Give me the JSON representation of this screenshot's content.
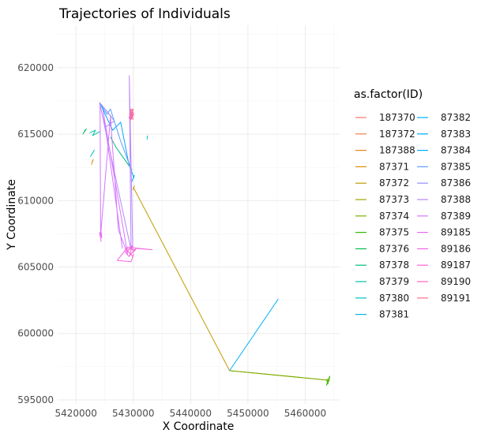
{
  "chart_data": {
    "type": "line",
    "title": "Trajectories of Individuals",
    "xlabel": "X Coordinate",
    "ylabel": "Y Coordinate",
    "xlim": [
      5416800,
      5466000
    ],
    "ylim": [
      594700,
      623200
    ],
    "x_ticks": [
      5420000,
      5430000,
      5440000,
      5450000,
      5460000
    ],
    "y_ticks": [
      595000,
      600000,
      605000,
      610000,
      615000,
      620000
    ],
    "x_tick_labels": [
      "5420000",
      "5430000",
      "5440000",
      "5450000",
      "5460000"
    ],
    "y_tick_labels": [
      "595000",
      "600000",
      "605000",
      "610000",
      "615000",
      "620000"
    ],
    "grid": true,
    "legend": {
      "title": "as.factor(ID)",
      "placement": "right",
      "columns": 2
    },
    "series": [
      {
        "name": "187370",
        "color": "#F8766D",
        "x": [
          5429400,
          5429700,
          5429300,
          5429900,
          5429500
        ],
        "y": [
          616400,
          616800,
          616200,
          616500,
          616700
        ]
      },
      {
        "name": "187372",
        "color": "#F07D4B",
        "x": [
          5429600,
          5430000,
          5429400,
          5429800
        ],
        "y": [
          616300,
          616900,
          616600,
          616100
        ]
      },
      {
        "name": "187388",
        "color": "#E68613",
        "x": [
          5422800,
          5423000,
          5422700
        ],
        "y": [
          612900,
          613100,
          612700
        ]
      },
      {
        "name": "87371",
        "color": "#D89000",
        "x": [
          5430000,
          5430200,
          5429900
        ],
        "y": [
          610900,
          611100,
          610800
        ]
      },
      {
        "name": "87372",
        "color": "#C09B00",
        "x": [
          5430000,
          5446800
        ],
        "y": [
          611000,
          597200
        ]
      },
      {
        "name": "87373",
        "color": "#A3A500",
        "x": [
          5446800,
          5463700
        ],
        "y": [
          597200,
          596500
        ]
      },
      {
        "name": "87374",
        "color": "#7CAE00",
        "x": [
          5446800,
          5463700,
          5464000,
          5463800
        ],
        "y": [
          597200,
          596500,
          596200,
          596600
        ]
      },
      {
        "name": "87375",
        "color": "#39B600",
        "x": [
          5463900,
          5464200,
          5463700,
          5464100,
          5464300
        ],
        "y": [
          596300,
          596700,
          596100,
          596400,
          596800
        ]
      },
      {
        "name": "87376",
        "color": "#00BB4E",
        "x": [
          5421400,
          5421800,
          5421200
        ],
        "y": [
          615200,
          615400,
          615000
        ]
      },
      {
        "name": "87378",
        "color": "#00BF7D",
        "x": [
          5426000,
          5427000,
          5429800
        ],
        "y": [
          614800,
          614000,
          612300
        ]
      },
      {
        "name": "87379",
        "color": "#00C1A3",
        "x": [
          5422400,
          5423400,
          5422900,
          5424200
        ],
        "y": [
          615100,
          615300,
          614900,
          615200
        ]
      },
      {
        "name": "87380",
        "color": "#00BFC4",
        "x": [
          5422800,
          5423200,
          5422500
        ],
        "y": [
          613500,
          613800,
          613300
        ]
      },
      {
        "name": "87381",
        "color": "#00BAE0",
        "x": [
          5432400,
          5432500
        ],
        "y": [
          614600,
          614900
        ]
      },
      {
        "name": "87382",
        "color": "#00B0F6",
        "x": [
          5446800,
          5455300
        ],
        "y": [
          597200,
          602600
        ]
      },
      {
        "name": "87383",
        "color": "#00A5FF",
        "x": [
          5429900,
          5430200,
          5429700
        ],
        "y": [
          611600,
          611900,
          611400
        ]
      },
      {
        "name": "87384",
        "color": "#00A9FF",
        "x": [
          5424100,
          5426400,
          5427800,
          5429200,
          5430100
        ],
        "y": [
          617400,
          615300,
          615900,
          612800,
          611700
        ]
      },
      {
        "name": "87385",
        "color": "#619CFF",
        "x": [
          5424200,
          5425400,
          5426000,
          5427700,
          5429500
        ],
        "y": [
          617300,
          616500,
          616900,
          614600,
          612500
        ]
      },
      {
        "name": "87386",
        "color": "#9590FF",
        "x": [
          5426200,
          5424300,
          5426700,
          5425000
        ],
        "y": [
          616300,
          617300,
          616000,
          615500
        ]
      },
      {
        "name": "87388",
        "color": "#B983FF",
        "x": [
          5424100,
          5429600,
          5429300,
          5429900
        ],
        "y": [
          617400,
          606300,
          619400,
          606200
        ]
      },
      {
        "name": "87389",
        "color": "#D376FF",
        "x": [
          5424200,
          5424300,
          5426000,
          5427400,
          5429000,
          5424700,
          5428100
        ],
        "y": [
          617200,
          607400,
          616300,
          607800,
          606000,
          616800,
          606400
        ]
      },
      {
        "name": "89185",
        "color": "#E76BF3",
        "x": [
          5424300,
          5424500,
          5424100,
          5424400
        ],
        "y": [
          608000,
          607200,
          607600,
          606900
        ]
      },
      {
        "name": "89186",
        "color": "#F564E3",
        "x": [
          5428500,
          5429200,
          5430500,
          5433300,
          5429000,
          5427200,
          5429600,
          5430100
        ],
        "y": [
          606200,
          605800,
          606400,
          606300,
          606500,
          605500,
          605400,
          606000
        ]
      },
      {
        "name": "89187",
        "color": "#FC61D5",
        "x": [
          5428800,
          5429800,
          5429400,
          5430400,
          5428600,
          5429900
        ],
        "y": [
          606100,
          606600,
          605900,
          606300,
          606400,
          605800
        ]
      },
      {
        "name": "89190",
        "color": "#FF62BC",
        "x": [
          5429200,
          5429900,
          5429400,
          5430100,
          5429700
        ],
        "y": [
          616200,
          616700,
          616000,
          616500,
          616900
        ]
      },
      {
        "name": "89191",
        "color": "#FF6C91",
        "x": [
          5429300,
          5429800,
          5429500,
          5430000
        ],
        "y": [
          616500,
          616300,
          616900,
          616100
        ]
      }
    ]
  }
}
